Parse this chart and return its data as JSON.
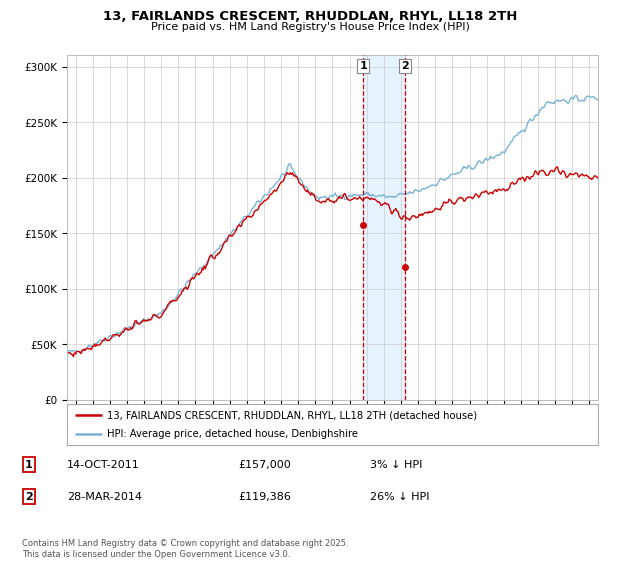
{
  "title": "13, FAIRLANDS CRESCENT, RHUDDLAN, RHYL, LL18 2TH",
  "subtitle": "Price paid vs. HM Land Registry's House Price Index (HPI)",
  "legend_line1": "13, FAIRLANDS CRESCENT, RHUDDLAN, RHYL, LL18 2TH (detached house)",
  "legend_line2": "HPI: Average price, detached house, Denbighshire",
  "transaction1_date": "14-OCT-2011",
  "transaction1_price": "£157,000",
  "transaction1_hpi": "3% ↓ HPI",
  "transaction2_date": "28-MAR-2014",
  "transaction2_price": "£119,386",
  "transaction2_hpi": "26% ↓ HPI",
  "footer": "Contains HM Land Registry data © Crown copyright and database right 2025.\nThis data is licensed under the Open Government Licence v3.0.",
  "hpi_color": "#7ab3d4",
  "price_color": "#cc0000",
  "marker1_x": 2011.79,
  "marker1_y": 157000,
  "marker2_x": 2014.24,
  "marker2_y": 119386,
  "ylim": [
    0,
    310000
  ],
  "xlim": [
    1994.5,
    2025.5
  ],
  "shade_color": "#ddeeff"
}
